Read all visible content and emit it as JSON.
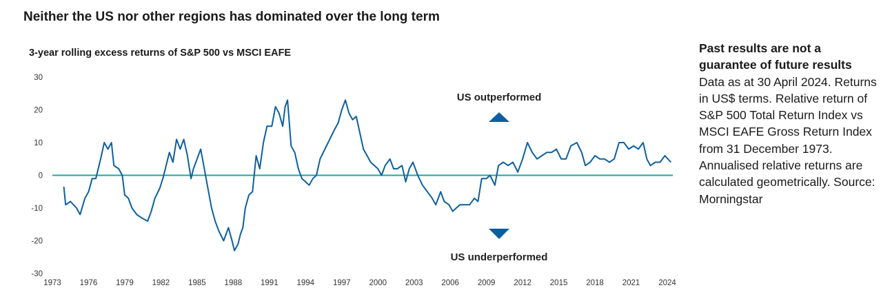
{
  "title": "Neither the US nor other regions has dominated over the long term",
  "side_note": {
    "heading": "Past results are not a guarantee of future results",
    "body": "Data as at 30 April 2024. Returns in US$ terms. Relative return of S&P 500 Total Return Index vs MSCI EAFE Gross Return Index from 31 December 1973. Annualised relative returns are calculated geometrically. Source: Morningstar"
  },
  "colors": {
    "line": "#0b5fa0",
    "zero_line": "#1aa8a0",
    "arrow": "#0b5fa0"
  },
  "chart_data": {
    "type": "line",
    "title": "3-year rolling excess returns of S&P 500 vs MSCI EAFE",
    "xlabel": "",
    "ylabel": "",
    "xlim": [
      1973,
      2024.3
    ],
    "ylim": [
      -30,
      30
    ],
    "x_ticks": [
      "1973",
      "1976",
      "1979",
      "1982",
      "1985",
      "1988",
      "1991",
      "1994",
      "1997",
      "2000",
      "2003",
      "2006",
      "2009",
      "2012",
      "2015",
      "2018",
      "2021",
      "2024"
    ],
    "y_ticks": [
      "30",
      "20",
      "10",
      "0",
      "-10",
      "-20",
      "-30"
    ],
    "annotations": {
      "up": "US outperformed",
      "down": "US underperformed"
    },
    "series": [
      {
        "name": "S&P 500 vs MSCI EAFE",
        "x": [
          1973.95,
          1974.1,
          1974.5,
          1975,
          1975.3,
          1975.7,
          1976,
          1976.3,
          1976.6,
          1977,
          1977.3,
          1977.6,
          1977.9,
          1978.1,
          1978.5,
          1978.8,
          1979,
          1979.3,
          1979.6,
          1980,
          1980.4,
          1980.9,
          1981.2,
          1981.5,
          1981.9,
          1982.2,
          1982.5,
          1982.7,
          1983,
          1983.3,
          1983.6,
          1983.9,
          1984.2,
          1984.5,
          1984.7,
          1985,
          1985.3,
          1985.6,
          1985.9,
          1986.2,
          1986.5,
          1986.8,
          1987.2,
          1987.6,
          1987.9,
          1988.1,
          1988.4,
          1988.6,
          1988.8,
          1989,
          1989.3,
          1989.6,
          1989.9,
          1990.2,
          1990.5,
          1990.8,
          1991.2,
          1991.5,
          1991.8,
          1992.1,
          1992.3,
          1992.5,
          1992.8,
          1993.1,
          1993.4,
          1993.7,
          1994,
          1994.3,
          1994.6,
          1994.9,
          1995.2,
          1995.6,
          1996,
          1996.4,
          1996.7,
          1997,
          1997.3,
          1997.6,
          1997.9,
          1998.2,
          1998.5,
          1998.8,
          1999.1,
          1999.4,
          1999.7,
          2000,
          2000.3,
          2000.6,
          2001,
          2001.3,
          2001.6,
          2002,
          2002.3,
          2002.6,
          2002.9,
          2003.3,
          2003.7,
          2004.1,
          2004.5,
          2004.8,
          2005.2,
          2005.5,
          2005.9,
          2006.2,
          2006.5,
          2006.8,
          2007.2,
          2007.6,
          2008,
          2008.3,
          2008.6,
          2009,
          2009.3,
          2009.7,
          2010,
          2010.4,
          2010.8,
          2011.2,
          2011.6,
          2012,
          2012.4,
          2012.8,
          2013.2,
          2013.6,
          2014,
          2014.4,
          2014.8,
          2015.2,
          2015.6,
          2016,
          2016.5,
          2016.9,
          2017.2,
          2017.6,
          2018,
          2018.4,
          2018.8,
          2019.2,
          2019.6,
          2020,
          2020.4,
          2020.8,
          2021.2,
          2021.6,
          2022,
          2022.3,
          2022.6,
          2023,
          2023.4,
          2023.8,
          2024.3
        ],
        "y": [
          -3.5,
          -9,
          -8,
          -10,
          -12,
          -7,
          -5,
          -1,
          -1,
          5,
          10,
          8,
          10,
          3,
          2,
          0,
          -6,
          -7,
          -10,
          -12,
          -13,
          -14,
          -11,
          -7,
          -4,
          -0.5,
          4,
          7,
          4,
          11,
          8,
          11,
          6,
          -1,
          2,
          5,
          8,
          2,
          -4,
          -10,
          -14,
          -17,
          -20,
          -16,
          -20,
          -23,
          -21,
          -18,
          -16,
          -10,
          -6,
          -5,
          6,
          2,
          10,
          15,
          15,
          21,
          19,
          15,
          21,
          23,
          9,
          7,
          2,
          -1,
          -2,
          -3,
          -1,
          0,
          5,
          8,
          11,
          14,
          16,
          20,
          23,
          19,
          17,
          18,
          13,
          8,
          6,
          4,
          3,
          2,
          0,
          3,
          5,
          2,
          2,
          3,
          -2,
          2,
          4,
          0,
          -3,
          -5,
          -7,
          -9,
          -5,
          -8,
          -9,
          -11,
          -10,
          -9,
          -9,
          -9,
          -7,
          -8,
          -1,
          -1,
          0,
          -3,
          3,
          4,
          3,
          4,
          1,
          5,
          10,
          7,
          5,
          6,
          7,
          7,
          8,
          5,
          5,
          9,
          10,
          7,
          3,
          4,
          6,
          5,
          5,
          4,
          5,
          10,
          10,
          8,
          9,
          8,
          10,
          5,
          3,
          4,
          4,
          6,
          4
        ]
      }
    ]
  }
}
